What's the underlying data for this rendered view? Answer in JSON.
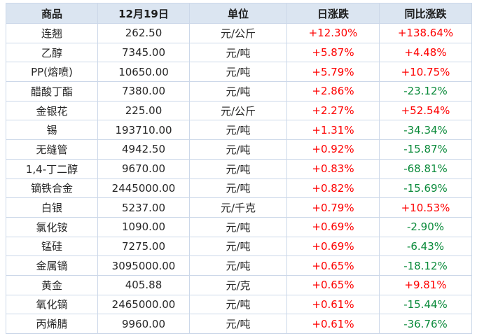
{
  "chart_data": {
    "type": "table",
    "title": "",
    "columns": [
      "商品",
      "12月19日",
      "单位",
      "日涨跌",
      "同比涨跌"
    ],
    "rows": [
      [
        "连翘",
        "262.50",
        "元/公斤",
        "+12.30%",
        "+138.64%"
      ],
      [
        "乙醇",
        "7345.00",
        "元/吨",
        "+5.87%",
        "+4.48%"
      ],
      [
        "PP(熔喷)",
        "10650.00",
        "元/吨",
        "+5.79%",
        "+10.75%"
      ],
      [
        "醋酸丁酯",
        "7380.00",
        "元/吨",
        "+2.86%",
        "-23.12%"
      ],
      [
        "金银花",
        "225.00",
        "元/公斤",
        "+2.27%",
        "+52.54%"
      ],
      [
        "锡",
        "193710.00",
        "元/吨",
        "+1.31%",
        "-34.34%"
      ],
      [
        "无缝管",
        "4942.50",
        "元/吨",
        "+0.92%",
        "-15.87%"
      ],
      [
        "1,4-丁二醇",
        "9670.00",
        "元/吨",
        "+0.83%",
        "-68.81%"
      ],
      [
        "镝铁合金",
        "2445000.00",
        "元/吨",
        "+0.82%",
        "-15.69%"
      ],
      [
        "白银",
        "5237.00",
        "元/千克",
        "+0.79%",
        "+10.53%"
      ],
      [
        "氯化铵",
        "1090.00",
        "元/吨",
        "+0.69%",
        "-2.90%"
      ],
      [
        "锰硅",
        "7275.00",
        "元/吨",
        "+0.69%",
        "-6.43%"
      ],
      [
        "金属镝",
        "3095000.00",
        "元/吨",
        "+0.65%",
        "-18.12%"
      ],
      [
        "黄金",
        "405.88",
        "元/克",
        "+0.65%",
        "+9.81%"
      ],
      [
        "氧化镝",
        "2465000.00",
        "元/吨",
        "+0.61%",
        "-15.44%"
      ],
      [
        "丙烯腈",
        "9960.00",
        "元/吨",
        "+0.61%",
        "-36.76%"
      ]
    ]
  },
  "colors": {
    "up": "#fe0101",
    "down": "#0a8a3a",
    "header_bg": "#dbe5f1",
    "border": "#ccd8e9",
    "text": "#262626",
    "page_bg": "#ffffff"
  }
}
